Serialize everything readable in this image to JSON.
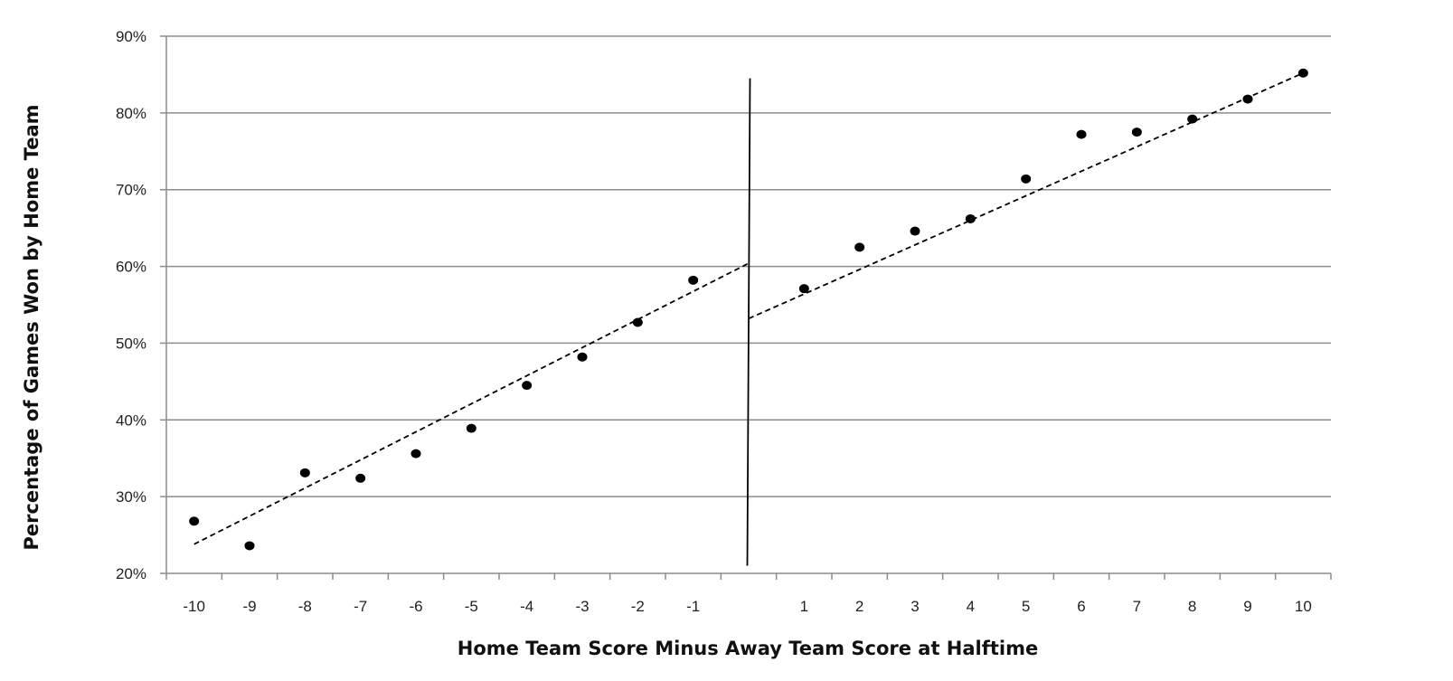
{
  "chart_data": {
    "type": "scatter",
    "title": "",
    "xlabel": "Home Team Score Minus Away Team Score at Halftime",
    "ylabel": "Percentage of Games Won by Home Team",
    "x_ticks": [
      "-10",
      "-9",
      "-8",
      "-7",
      "-6",
      "-5",
      "-4",
      "-3",
      "-2",
      "-1",
      "",
      "1",
      "2",
      "3",
      "4",
      "5",
      "6",
      "7",
      "8",
      "9",
      "10"
    ],
    "ylim": [
      0.2,
      0.9
    ],
    "y_ticks": [
      "20%",
      "30%",
      "40%",
      "50%",
      "60%",
      "70%",
      "80%",
      "90%"
    ],
    "grid": true,
    "series": [
      {
        "x": [
          -10,
          -9,
          -8,
          -7,
          -6,
          -5,
          -4,
          -3,
          -2,
          -1,
          1,
          2,
          3,
          4,
          5,
          6,
          7,
          8,
          9,
          10
        ],
        "y": [
          0.268,
          0.236,
          0.331,
          0.324,
          0.356,
          0.389,
          0.445,
          0.482,
          0.527,
          0.582,
          0.571,
          0.625,
          0.646,
          0.662,
          0.714,
          0.772,
          0.775,
          0.792,
          0.818,
          0.852
        ]
      }
    ],
    "trend_lines": [
      {
        "style": "dashed",
        "x": [
          -10,
          0
        ],
        "y": [
          0.238,
          0.604
        ]
      },
      {
        "style": "dashed",
        "x": [
          0,
          10
        ],
        "y": [
          0.532,
          0.852
        ]
      }
    ],
    "reference_line": {
      "style": "solid",
      "x": 0,
      "y": [
        0.21,
        0.845
      ]
    }
  }
}
